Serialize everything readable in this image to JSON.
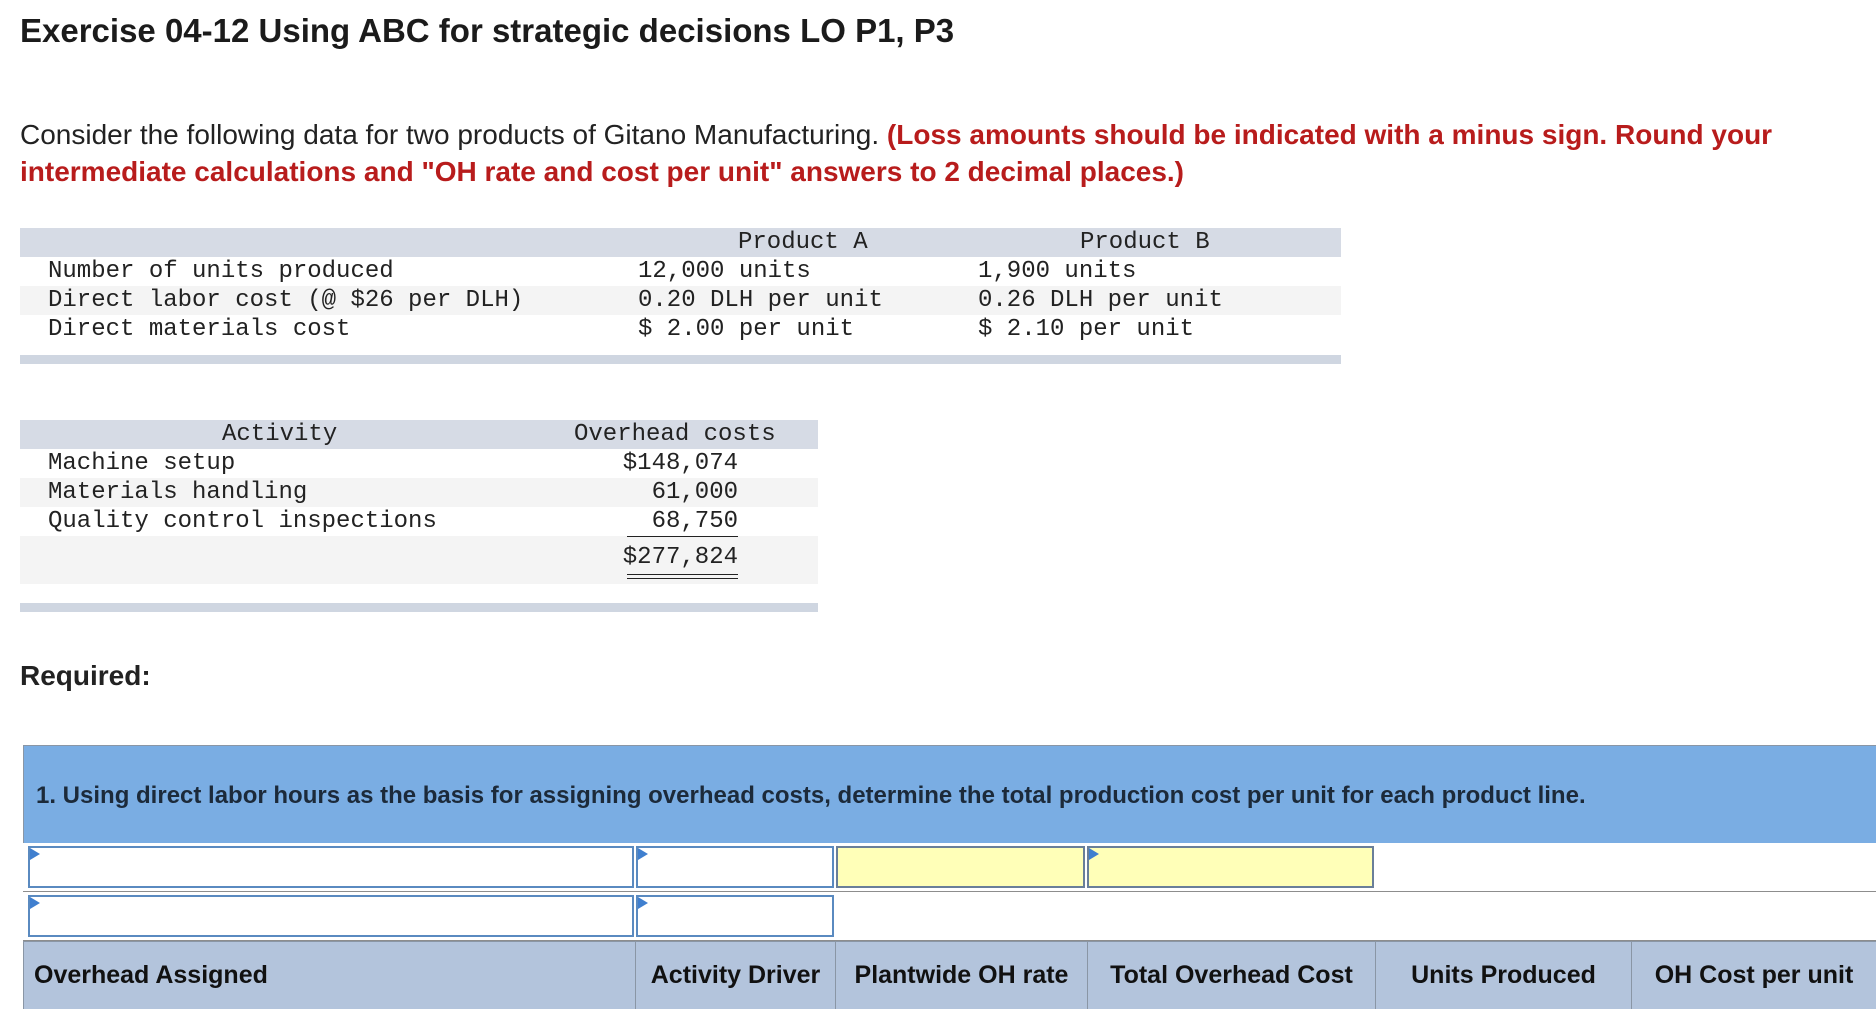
{
  "title": "Exercise 04-12 Using ABC for strategic decisions LO P1, P3",
  "intro": {
    "plain": "Consider the following data for two products of Gitano Manufacturing. ",
    "red": "(Loss amounts should be indicated with a minus sign. Round your intermediate calculations and \"OH rate and cost per unit\" answers to 2 decimal places.)"
  },
  "product_table": {
    "headers": [
      "Product A",
      "Product B"
    ],
    "rows": [
      {
        "label": "Number of units produced",
        "a": "12,000 units",
        "b": "1,900 units"
      },
      {
        "label": "Direct labor cost (@ $26 per DLH)",
        "a": "0.20 DLH per unit",
        "b": "0.26 DLH per unit"
      },
      {
        "label": "Direct materials cost",
        "a": "$ 2.00 per unit",
        "b": "$ 2.10 per unit"
      }
    ]
  },
  "overhead_table": {
    "headers": [
      "Activity",
      "Overhead costs"
    ],
    "rows": [
      {
        "activity": "Machine setup",
        "cost": "$148,074"
      },
      {
        "activity": "Materials handling",
        "cost": "61,000"
      },
      {
        "activity": "Quality control inspections",
        "cost": "68,750"
      }
    ],
    "total": "$277,824"
  },
  "required_label": "Required:",
  "question": "1. Using direct labor hours as the basis for assigning overhead costs, determine the total production cost per unit for each product line.",
  "answer_grid": {
    "column_headers": [
      "Overhead Assigned",
      "Activity Driver",
      "Plantwide OH rate",
      "Total Overhead Cost",
      "Units Produced",
      "OH Cost per unit"
    ]
  },
  "colors": {
    "accent_red": "#b81c1c",
    "panel_header": "#7aade3",
    "column_header": "#b3c4dc",
    "input_highlight": "#ffffb8"
  }
}
